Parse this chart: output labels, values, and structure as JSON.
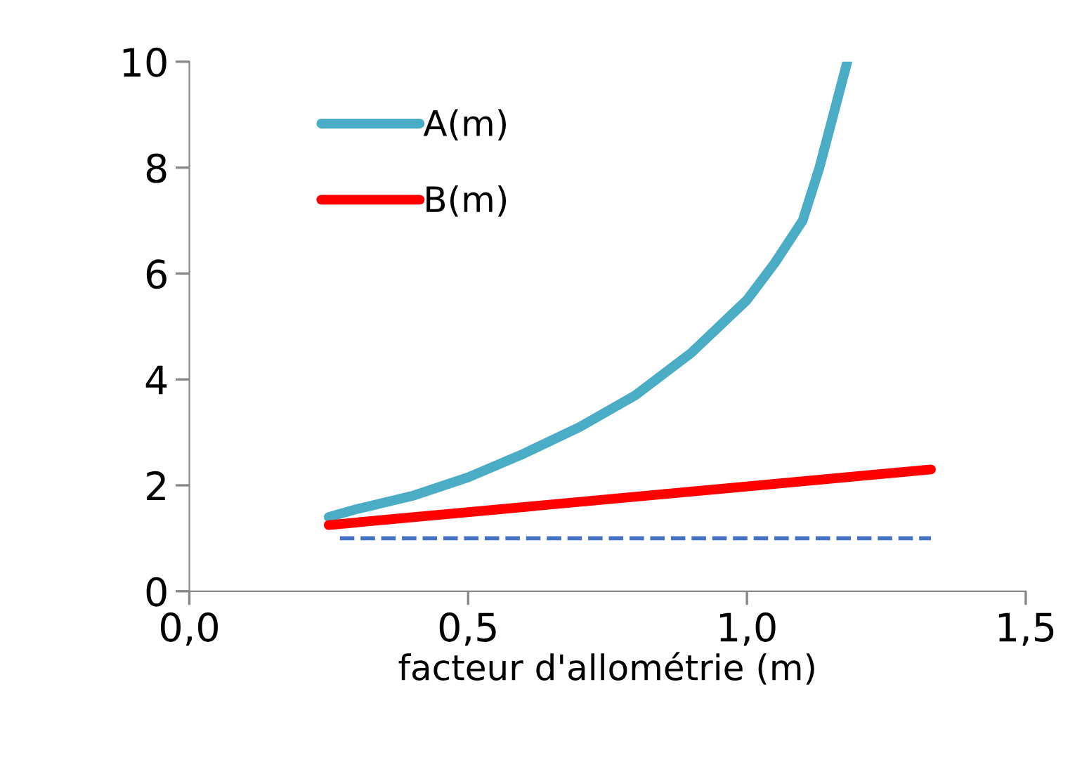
{
  "chart_data": {
    "type": "line",
    "xlabel": "facteur d'allométrie (m)",
    "xlim": [
      0,
      1.5
    ],
    "xticks": [
      {
        "value": 0,
        "label": "0,0"
      },
      {
        "value": 0.5,
        "label": "0,5"
      },
      {
        "value": 1,
        "label": "1,0"
      },
      {
        "value": 1.5,
        "label": "1,5"
      }
    ],
    "ylim": [
      0,
      10
    ],
    "yticks": [
      0,
      2,
      4,
      6,
      8,
      10
    ],
    "grid": false,
    "legend": "top left",
    "marker": "none",
    "series": [
      {
        "name": "A(m)",
        "color": "#4bacc6",
        "x": [
          0.25,
          0.3,
          0.4,
          0.5,
          0.6,
          0.7,
          0.8,
          0.9,
          1.0,
          1.05,
          1.1,
          1.13,
          1.16,
          1.18
        ],
        "values": [
          1.4,
          1.55,
          1.8,
          2.15,
          2.6,
          3.1,
          3.7,
          4.5,
          5.5,
          6.2,
          7.0,
          8.0,
          9.2,
          10
        ]
      },
      {
        "name": "B(m)",
        "color": "#ff0000",
        "x": [
          0.25,
          1.33
        ],
        "values": [
          1.25,
          2.3
        ]
      },
      {
        "color": "#4472c4",
        "line_style": "dashed",
        "x": [
          0.27,
          1.33
        ],
        "values": [
          1.0,
          1.0
        ]
      }
    ]
  }
}
